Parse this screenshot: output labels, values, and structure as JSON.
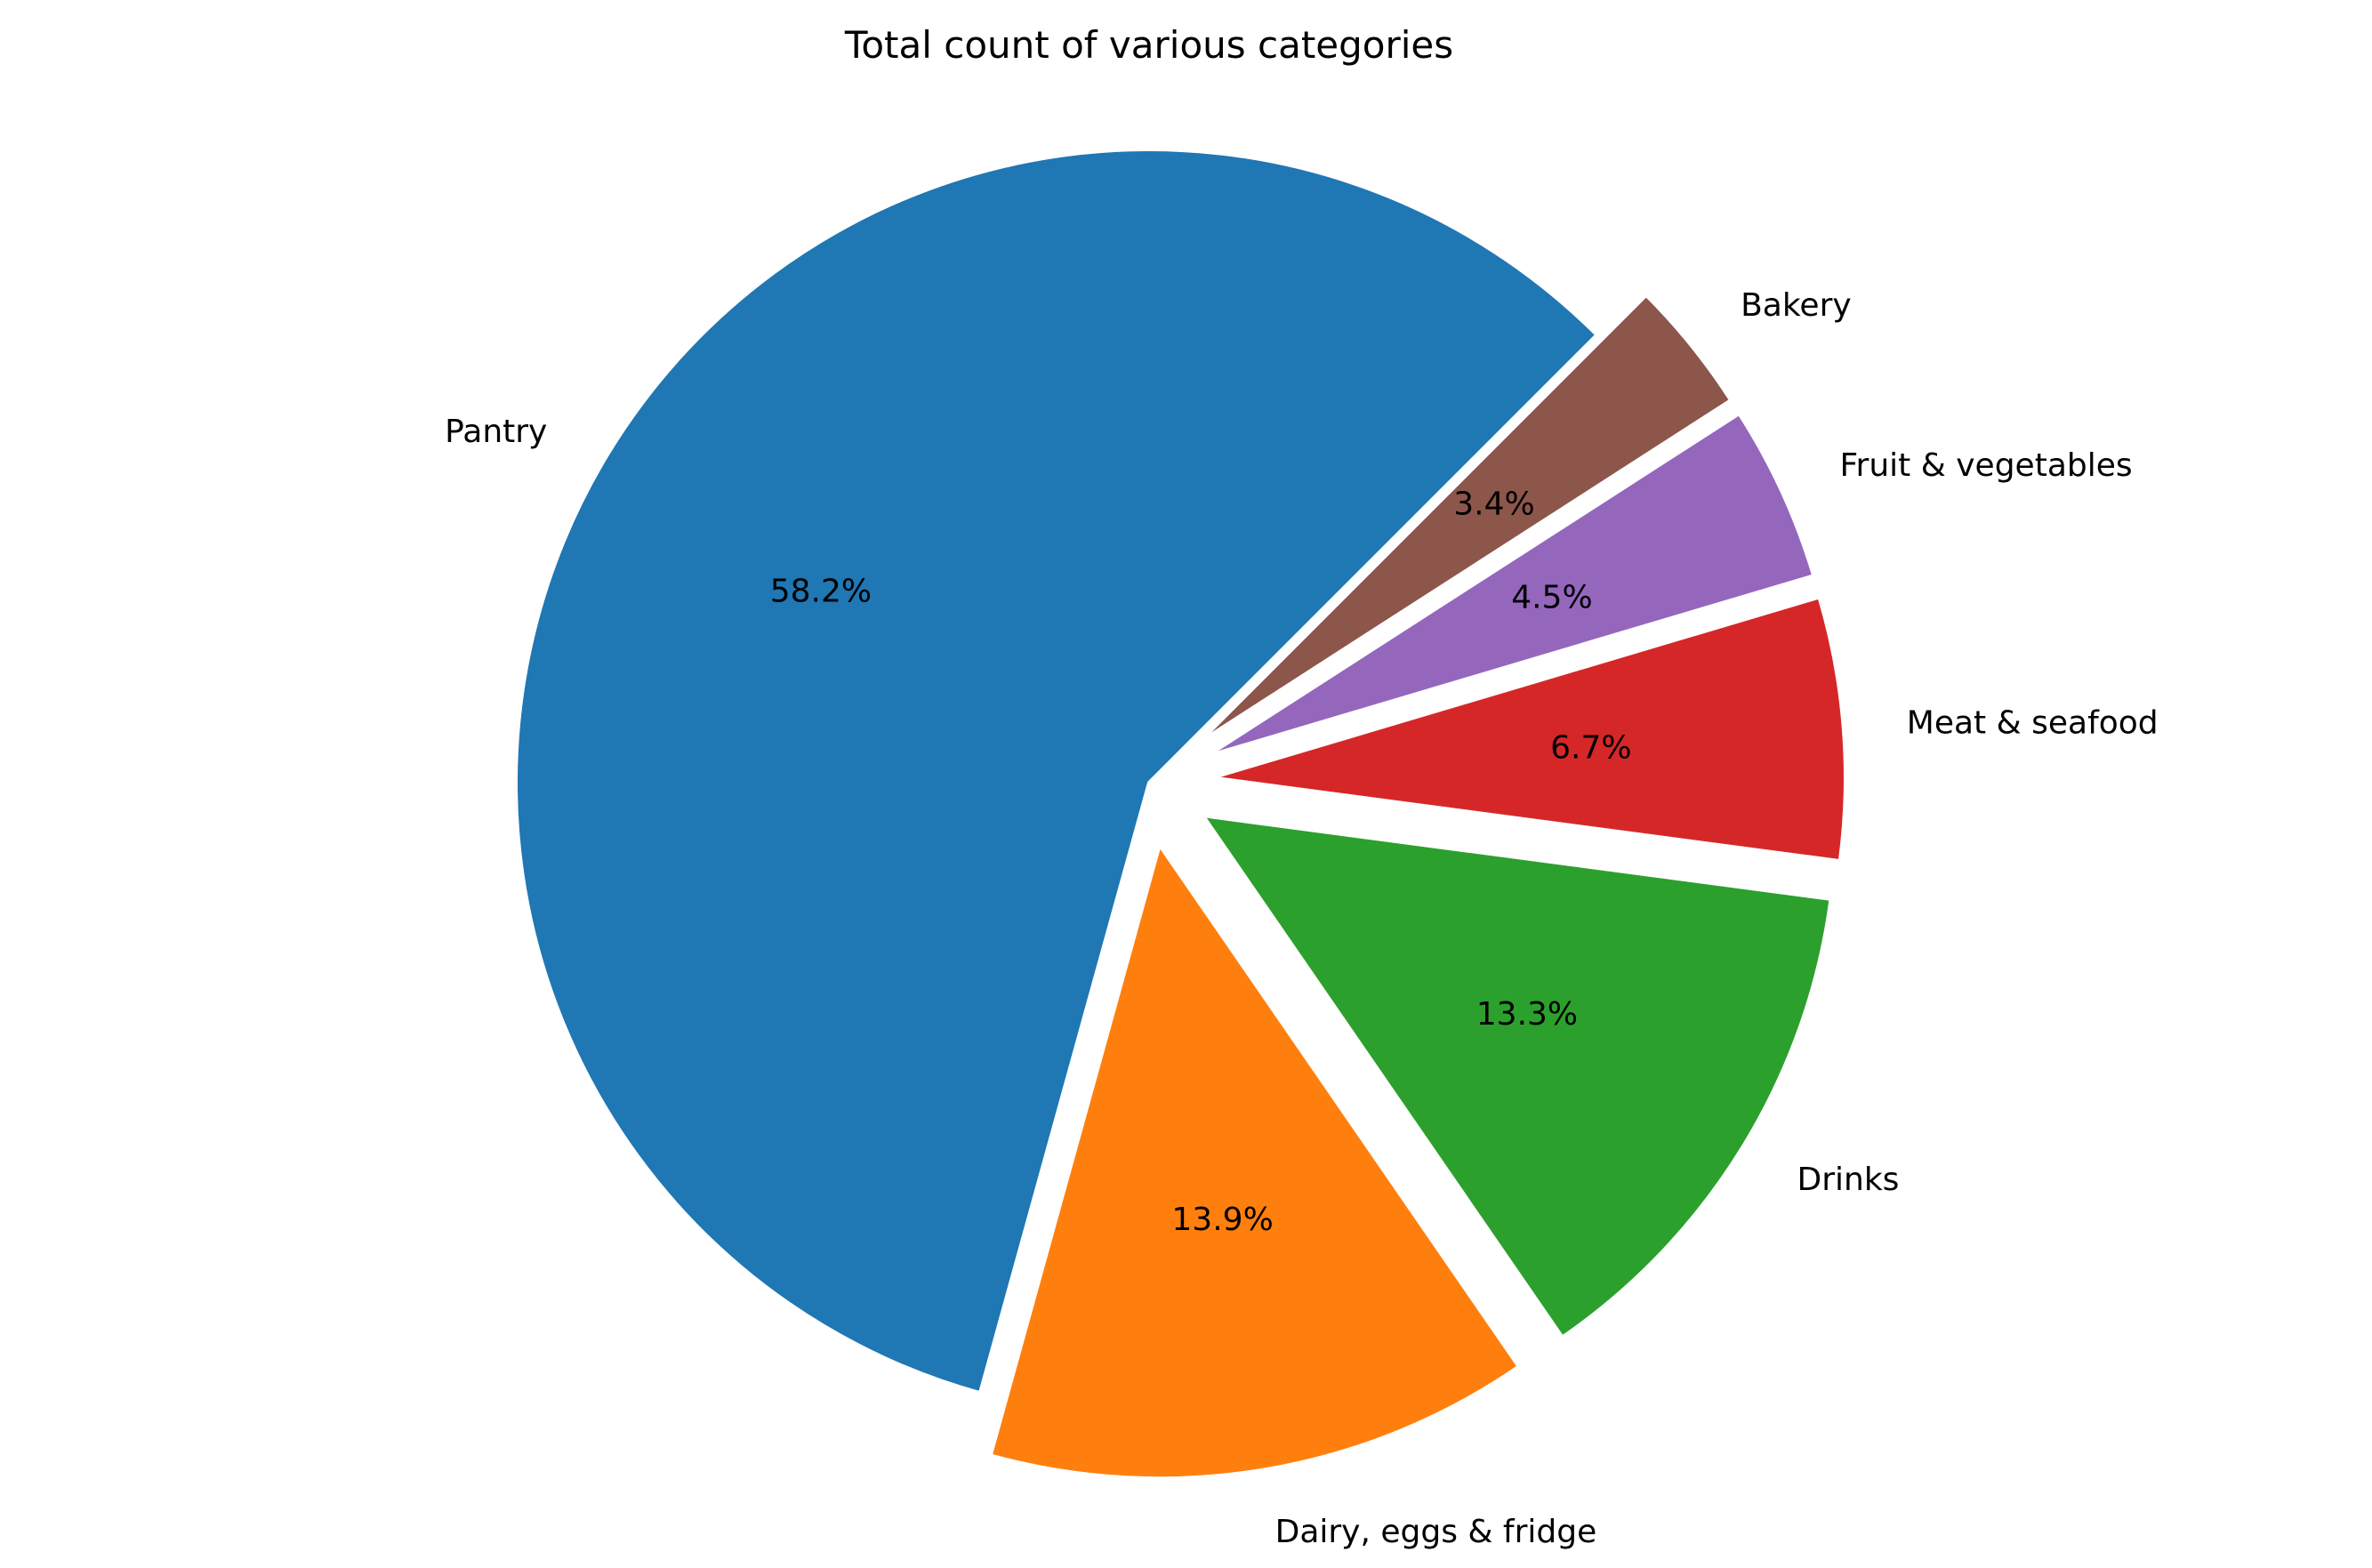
{
  "chart_data": {
    "type": "pie",
    "title": "Total count of various categories",
    "categories": [
      "Pantry",
      "Dairy, eggs & fridge",
      "Drinks",
      "Meat & seafood",
      "Fruit & vegetables",
      "Bakery"
    ],
    "values": [
      58.2,
      13.9,
      13.3,
      6.7,
      4.5,
      3.4
    ],
    "value_labels": [
      "58.2%",
      "13.9%",
      "13.3%",
      "6.7%",
      "4.5%",
      "3.4%"
    ],
    "colors": [
      "#1f77b4",
      "#ff7f0e",
      "#2ca02c",
      "#d62728",
      "#9467bd",
      "#8c564b"
    ],
    "start_angle_deg": 45,
    "direction": "counterclockwise",
    "exploded": [
      false,
      true,
      true,
      true,
      true,
      true
    ],
    "legend": "none"
  }
}
